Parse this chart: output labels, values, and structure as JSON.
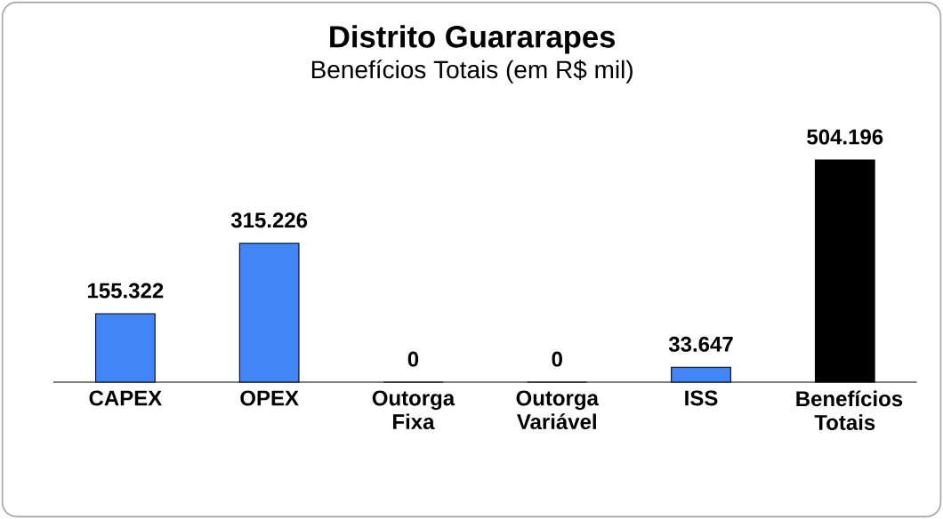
{
  "chart_data": {
    "type": "bar",
    "title": "Distrito Guararapes",
    "subtitle": "Benefícios Totais (em R$ mil)",
    "categories": [
      "CAPEX",
      "OPEX",
      "Outorga Fixa",
      "Outorga Variável",
      "ISS",
      "Benefícios Totais"
    ],
    "values": [
      155322,
      315226,
      0,
      0,
      33647,
      504196
    ],
    "value_labels": [
      "155.322",
      "315.226",
      "0",
      "0",
      "33.647",
      "504.196"
    ],
    "colors": [
      "#4285f4",
      "#4285f4",
      "#4285f4",
      "#4285f4",
      "#4285f4",
      "#000000"
    ],
    "data_labels": false
  }
}
